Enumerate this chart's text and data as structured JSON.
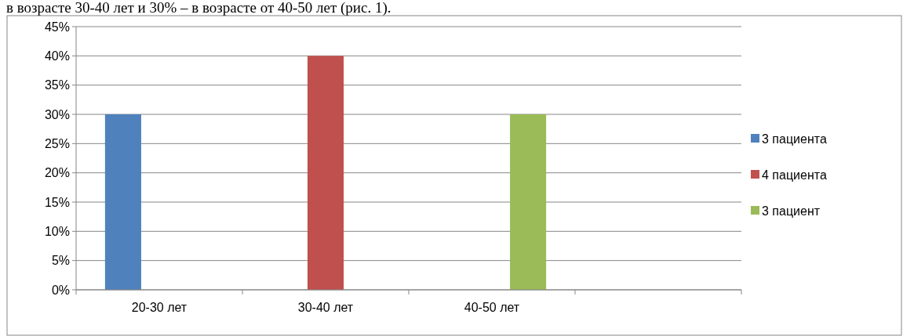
{
  "chart_data": {
    "type": "bar",
    "annotations": [
      "в возрасте 30-40 лет и 30% – в возрасте от 40-50 лет (рис. 1)."
    ],
    "categories": [
      "20-30 лет",
      "30-40 лет",
      "40-50 лет",
      null
    ],
    "series": [
      {
        "name": "3 пациента",
        "color": "#4f81bd",
        "values": [
          30,
          null,
          null,
          null
        ]
      },
      {
        "name": "4 пациента",
        "color": "#c0504d",
        "values": [
          null,
          40,
          null,
          null
        ]
      },
      {
        "name": "3 пациент",
        "color": "#9bbb59",
        "values": [
          null,
          null,
          30,
          null
        ]
      }
    ],
    "ylim": [
      0,
      45
    ],
    "yticks": [
      {
        "value": 0,
        "label": "0%"
      },
      {
        "value": 5,
        "label": "5%"
      },
      {
        "value": 10,
        "label": "10%"
      },
      {
        "value": 15,
        "label": "15%"
      },
      {
        "value": 20,
        "label": "20%"
      },
      {
        "value": 25,
        "label": "25%"
      },
      {
        "value": 30,
        "label": "30%"
      },
      {
        "value": 35,
        "label": "35%"
      },
      {
        "value": 40,
        "label": "40%"
      },
      {
        "value": 45,
        "label": "45%"
      }
    ],
    "grid": "y",
    "legend": "right"
  }
}
